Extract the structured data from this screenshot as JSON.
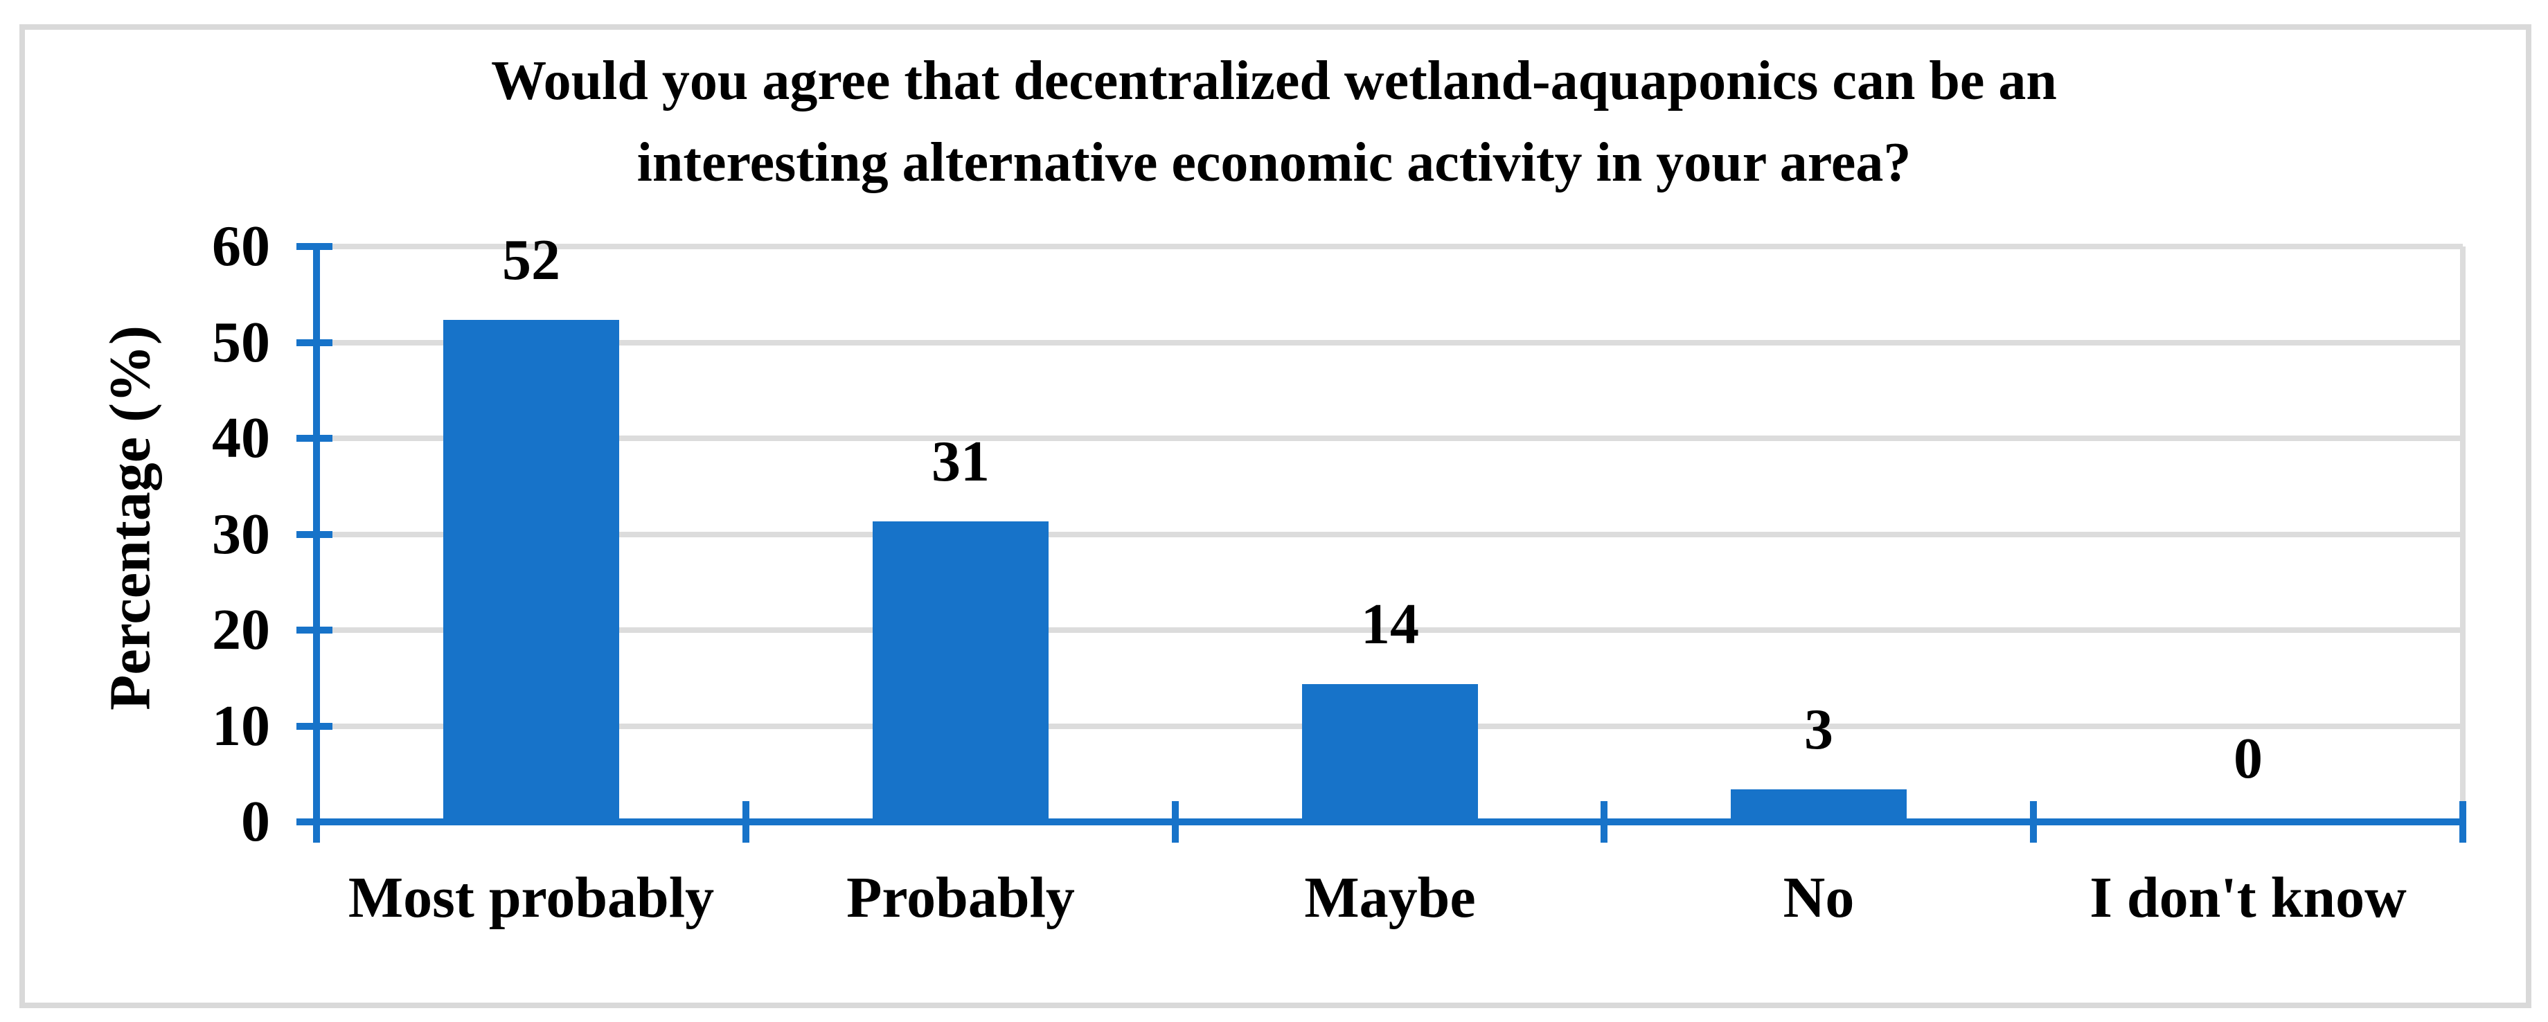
{
  "figure": {
    "background": "#FFFFFF",
    "border_color": "#D9D9D9"
  },
  "chart_data": {
    "type": "bar",
    "title": "Would you agree that decentralized wetland-aquaponics can be an interesting alternative economic activity in your area?",
    "title_lines": [
      "Would you agree that decentralized wetland-aquaponics can be an",
      "interesting alternative economic activity in your area?"
    ],
    "categories": [
      "Most probably",
      "Probably",
      "Maybe",
      "No",
      "I don't know"
    ],
    "values": [
      52,
      31,
      14,
      3,
      0
    ],
    "xlabel": "",
    "ylabel": "Percentage (%)",
    "ylim": [
      0,
      60
    ],
    "yticks": [
      0,
      10,
      20,
      30,
      40,
      50,
      60
    ],
    "grid": "horizontal-gridlines-on",
    "legend": "none",
    "bar_color": "#1773C9",
    "axis_color": "#1773C9",
    "gridline_color": "#DCDCDC",
    "text_color": "#000000"
  }
}
